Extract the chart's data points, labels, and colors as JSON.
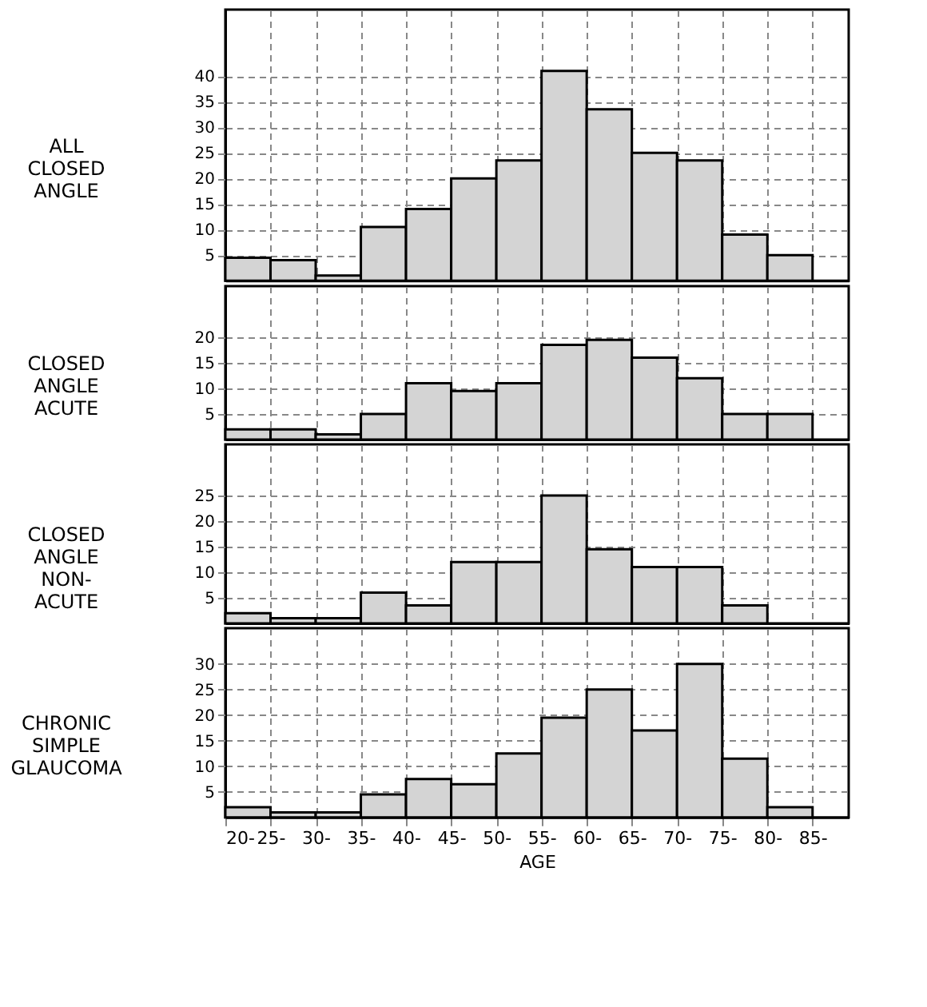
{
  "chart_data": [
    {
      "type": "histogram",
      "title": "ALL\nCLOSED\nANGLE",
      "bins": [
        20,
        25,
        30,
        35,
        40,
        45,
        50,
        55,
        60,
        65,
        70,
        75,
        80,
        85
      ],
      "values": [
        4.5,
        4,
        1,
        10.5,
        14,
        20,
        23.5,
        41,
        33.5,
        25,
        23.5,
        9,
        5
      ],
      "color": "#d4d4d4",
      "xlim": [
        20,
        89
      ],
      "xticks": [
        20,
        25,
        30,
        35,
        40,
        45,
        50,
        55,
        60,
        65,
        70,
        75,
        80,
        85
      ],
      "ylim": [
        0,
        53
      ],
      "yticks": [
        5,
        10,
        15,
        20,
        25,
        30,
        35,
        40
      ],
      "grid": true,
      "tick_labels": "y"
    },
    {
      "type": "histogram",
      "title": "CLOSED\nANGLE\nACUTE",
      "bins": [
        20,
        25,
        30,
        35,
        40,
        45,
        50,
        55,
        60,
        65,
        70,
        75,
        80,
        85
      ],
      "values": [
        2,
        2,
        1,
        5,
        11,
        9.5,
        11,
        18.5,
        19.5,
        16,
        12,
        5,
        5
      ],
      "color": "#d4d4d4",
      "xlim": [
        20,
        89
      ],
      "xticks": [
        20,
        25,
        30,
        35,
        40,
        45,
        50,
        55,
        60,
        65,
        70,
        75,
        80,
        85
      ],
      "ylim": [
        0,
        30
      ],
      "yticks": [
        5,
        10,
        15,
        20
      ],
      "grid": true,
      "tick_labels": "y"
    },
    {
      "type": "histogram",
      "title": "CLOSED\nANGLE\nNON-\nACUTE",
      "bins": [
        20,
        25,
        30,
        35,
        40,
        45,
        50,
        55,
        60,
        65,
        70,
        75,
        80,
        85
      ],
      "values": [
        2,
        1,
        1,
        6,
        3.5,
        12,
        12,
        25,
        14.5,
        11,
        11,
        3.5,
        null
      ],
      "color": "#d4d4d4",
      "xlim": [
        20,
        89
      ],
      "xticks": [
        20,
        25,
        30,
        35,
        40,
        45,
        50,
        55,
        60,
        65,
        70,
        75,
        80,
        85
      ],
      "ylim": [
        0,
        35
      ],
      "yticks": [
        5,
        10,
        15,
        20,
        25
      ],
      "grid": true,
      "tick_labels": "y"
    },
    {
      "type": "histogram",
      "title": "CHRONIC\nSIMPLE\nGLAUCOMA",
      "xlabel": "AGE",
      "bins": [
        20,
        25,
        30,
        35,
        40,
        45,
        50,
        55,
        60,
        65,
        70,
        75,
        80,
        85
      ],
      "values": [
        2,
        1,
        1,
        4.5,
        7.5,
        6.5,
        12.5,
        19.5,
        25,
        17,
        30,
        11.5,
        2
      ],
      "color": "#d4d4d4",
      "xlim": [
        20,
        89
      ],
      "xticks": [
        {
          "value": 20,
          "label": "20-"
        },
        {
          "value": 25,
          "label": "25-"
        },
        {
          "value": 30,
          "label": "30-"
        },
        {
          "value": 35,
          "label": "35-"
        },
        {
          "value": 40,
          "label": "40-"
        },
        {
          "value": 45,
          "label": "45-"
        },
        {
          "value": 50,
          "label": "50-"
        },
        {
          "value": 55,
          "label": "55-"
        },
        {
          "value": 60,
          "label": "60-"
        },
        {
          "value": 65,
          "label": "65-"
        },
        {
          "value": 70,
          "label": "70-"
        },
        {
          "value": 75,
          "label": "75-"
        },
        {
          "value": 80,
          "label": "80-"
        },
        {
          "value": 85,
          "label": "85-"
        }
      ],
      "ylim": [
        0,
        37
      ],
      "yticks": [
        5,
        10,
        15,
        20,
        25,
        30
      ],
      "grid": true
    }
  ]
}
